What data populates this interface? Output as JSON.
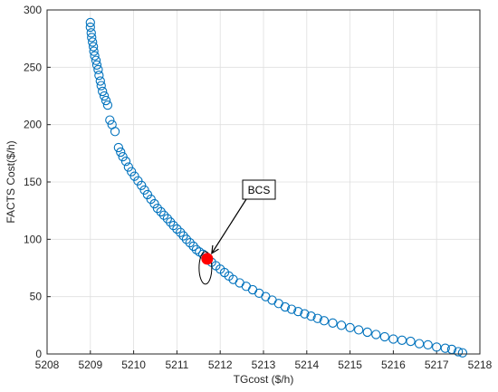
{
  "chart_data": {
    "type": "scatter",
    "xlabel": "TGcost ($/h)",
    "ylabel": "FACTS Cost($/h)",
    "xlim": [
      5208,
      5218
    ],
    "ylim": [
      0,
      300
    ],
    "x_ticks": [
      "5208",
      "5209",
      "5210",
      "5211",
      "5212",
      "5213",
      "5214",
      "5215",
      "5216",
      "5217",
      "5218"
    ],
    "y_ticks": [
      "0",
      "50",
      "100",
      "150",
      "200",
      "250",
      "300"
    ],
    "grid": true,
    "marker_color": "#0072BD",
    "highlight_color": "#FF0000",
    "series": [
      {
        "marker": "open-circle",
        "x": [
          5209.0,
          5209.0,
          5209.02,
          5209.03,
          5209.05,
          5209.07,
          5209.08,
          5209.1,
          5209.13,
          5209.15,
          5209.18,
          5209.2,
          5209.23,
          5209.25,
          5209.28,
          5209.32,
          5209.36,
          5209.4,
          5209.45,
          5209.5,
          5209.57,
          5209.65,
          5209.7,
          5209.75,
          5209.82,
          5209.88,
          5209.95,
          5210.02,
          5210.1,
          5210.18,
          5210.25,
          5210.32,
          5210.4,
          5210.48,
          5210.55,
          5210.63,
          5210.7,
          5210.78,
          5210.85,
          5210.92,
          5211.0,
          5211.08,
          5211.15,
          5211.22,
          5211.3,
          5211.38,
          5211.45,
          5211.52,
          5211.6,
          5211.68,
          5211.8,
          5211.9,
          5212.0,
          5212.1,
          5212.2,
          5212.3,
          5212.45,
          5212.6,
          5212.75,
          5212.9,
          5213.05,
          5213.2,
          5213.35,
          5213.5,
          5213.65,
          5213.8,
          5213.95,
          5214.1,
          5214.25,
          5214.4,
          5214.6,
          5214.8,
          5215.0,
          5215.2,
          5215.4,
          5215.6,
          5215.8,
          5216.0,
          5216.2,
          5216.4,
          5216.6,
          5216.8,
          5217.0,
          5217.2,
          5217.35,
          5217.5,
          5217.6
        ],
        "y": [
          289,
          285,
          280,
          276,
          272,
          268,
          264,
          260,
          256,
          252,
          248,
          243,
          238,
          234,
          229,
          225,
          221,
          217,
          204,
          200,
          194,
          180,
          176,
          172,
          168,
          163,
          159,
          155,
          151,
          147,
          143,
          139,
          135,
          131,
          127,
          124,
          121,
          118,
          115,
          112,
          109,
          106,
          103,
          100,
          97,
          94,
          91,
          89,
          87,
          84,
          80,
          77,
          74,
          71,
          68,
          65,
          62,
          59,
          56,
          53,
          50,
          47,
          44,
          41,
          39,
          37,
          35,
          33,
          31,
          29,
          27,
          25,
          23,
          21,
          19,
          17,
          15,
          13,
          12,
          11,
          9,
          8,
          6,
          5,
          4,
          2,
          1
        ]
      }
    ],
    "highlight_point": {
      "label": "BCS",
      "x": 5211.7,
      "y": 83
    }
  }
}
